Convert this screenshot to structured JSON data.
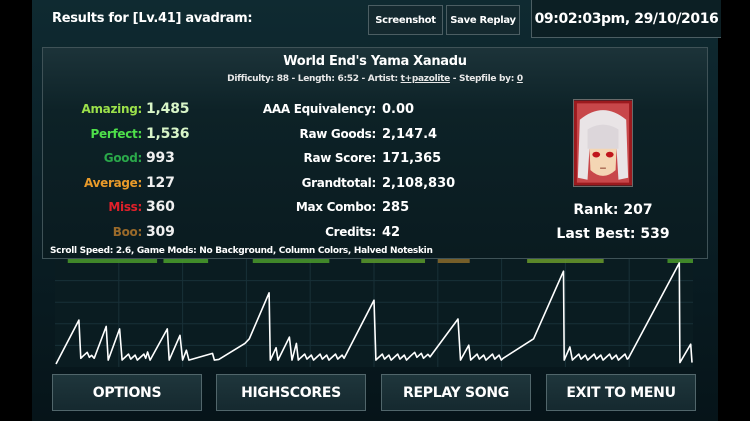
{
  "header": {
    "title": "Results for [Lv.41] avadram:",
    "screenshot_label": "Screenshot",
    "save_replay_label": "Save Replay",
    "timestamp": "09:02:03pm, 29/10/2016"
  },
  "song": {
    "title": "World End's Yama Xanadu",
    "difficulty_label": "Difficulty: 88 - Length: 6:52 -  Artist: ",
    "artist": "t+pazolite",
    "stepfile_label": "  -  Stepfile by: ",
    "stepfile_by": "0"
  },
  "judgements": [
    {
      "label": "Amazing:",
      "value": "1,485",
      "color": "#9be04a"
    },
    {
      "label": "Perfect:",
      "value": "1,536",
      "color": "#4ee04a"
    },
    {
      "label": "Good:",
      "value": "993",
      "color": "#2aa84a"
    },
    {
      "label": "Average:",
      "value": "127",
      "color": "#e89a2a"
    },
    {
      "label": "Miss:",
      "value": "360",
      "color": "#e0202a"
    },
    {
      "label": "Boo:",
      "value": "309",
      "color": "#9a6a2a"
    }
  ],
  "stats": [
    {
      "label": "AAA Equivalency:",
      "value": "0.00"
    },
    {
      "label": "Raw Goods:",
      "value": "2,147.4"
    },
    {
      "label": "Raw Score:",
      "value": "171,365"
    },
    {
      "label": "Grandtotal:",
      "value": "2,108,830"
    },
    {
      "label": "Max Combo:",
      "value": "285"
    },
    {
      "label": "Credits:",
      "value": "42"
    }
  ],
  "rank": "Rank: 207",
  "last_best": "Last Best: 539",
  "mods": "Scroll Speed: 2.6, Game Mods: No Background, Column Colors, Halved Noteskin",
  "chart_data": {
    "type": "line",
    "ylim": [
      0,
      285
    ],
    "xlim": [
      0,
      100
    ],
    "line_color": "#ffffff",
    "points": [
      [
        0,
        0
      ],
      [
        3.6,
        124
      ],
      [
        3.9,
        16
      ],
      [
        6.0,
        16
      ],
      [
        7.9,
        106
      ],
      [
        8.2,
        11
      ],
      [
        10.0,
        99
      ],
      [
        10.4,
        11
      ],
      [
        14.1,
        16
      ],
      [
        14.4,
        34
      ],
      [
        14.8,
        11
      ],
      [
        17.5,
        99
      ],
      [
        17.8,
        11
      ],
      [
        19.5,
        81
      ],
      [
        19.9,
        11
      ],
      [
        20.5,
        39
      ],
      [
        20.9,
        11
      ],
      [
        24.6,
        30
      ],
      [
        24.9,
        11
      ],
      [
        25.6,
        13
      ],
      [
        29.7,
        58
      ],
      [
        30.4,
        71
      ],
      [
        33.5,
        201
      ],
      [
        33.7,
        11
      ],
      [
        34.6,
        46
      ],
      [
        34.9,
        11
      ],
      [
        36.7,
        76
      ],
      [
        37.1,
        11
      ],
      [
        37.8,
        58
      ],
      [
        38.1,
        11
      ],
      [
        45.3,
        16
      ],
      [
        50.0,
        180
      ],
      [
        50.3,
        11
      ],
      [
        55.4,
        16
      ],
      [
        58.8,
        20
      ],
      [
        63.2,
        127
      ],
      [
        63.6,
        11
      ],
      [
        64.9,
        53
      ],
      [
        65.2,
        11
      ],
      [
        70.3,
        16
      ],
      [
        75.1,
        71
      ],
      [
        79.8,
        262
      ],
      [
        79.9,
        11
      ],
      [
        80.8,
        48
      ],
      [
        81.2,
        11
      ],
      [
        90.0,
        16
      ],
      [
        98.0,
        285
      ],
      [
        98.1,
        4
      ],
      [
        99.8,
        56
      ],
      [
        100,
        4
      ]
    ]
  },
  "buttons": {
    "options": "OPTIONS",
    "highscores": "HIGHSCORES",
    "replay": "REPLAY SONG",
    "exit": "EXIT TO MENU"
  }
}
